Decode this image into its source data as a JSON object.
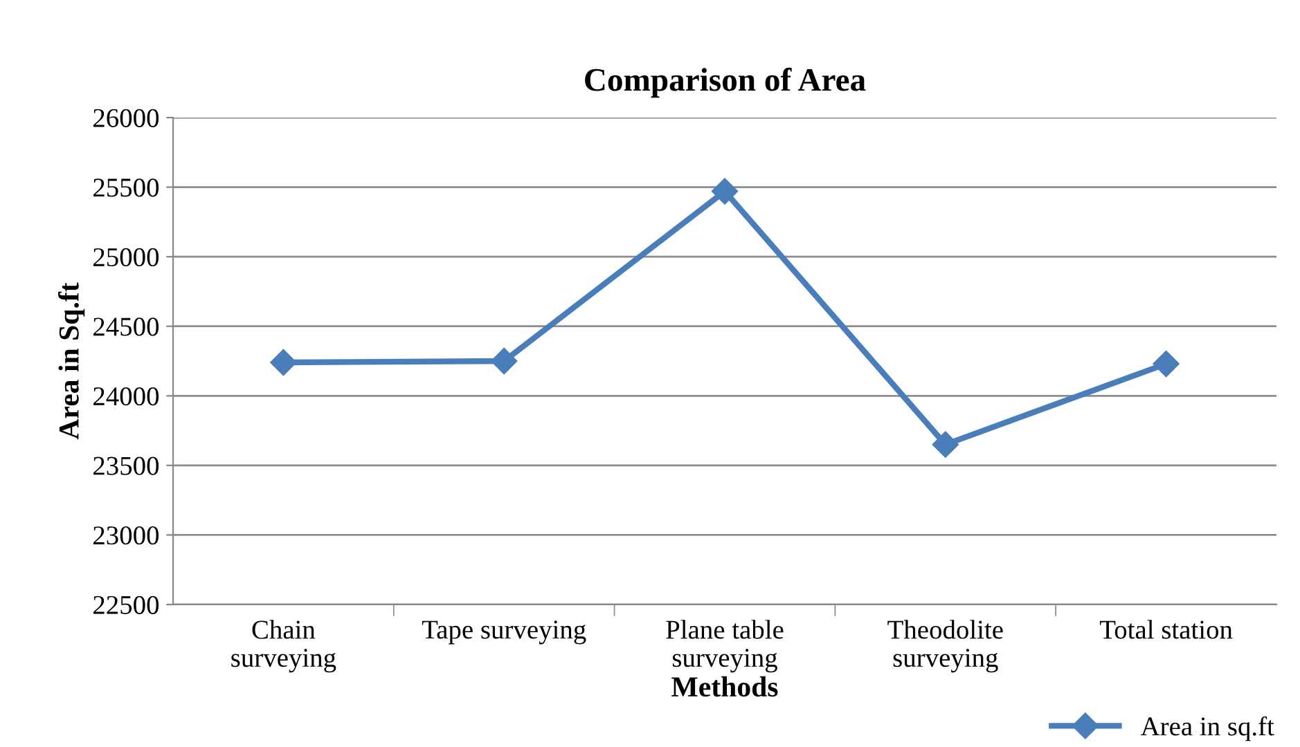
{
  "chart_data": {
    "type": "line",
    "title": "Comparison of Area",
    "xlabel": "Methods",
    "ylabel": "Area in Sq.ft",
    "categories": [
      "Chain\nsurveying",
      "Tape surveying",
      "Plane table\nsurveying",
      "Theodolite\nsurveying",
      "Total station"
    ],
    "series": [
      {
        "name": "Area in sq.ft",
        "color": "#4a7ebb",
        "values": [
          24240,
          24250,
          25470,
          23650,
          24230
        ]
      }
    ],
    "ylim": [
      22500,
      26000
    ],
    "yticks": [
      22500,
      23000,
      23500,
      24000,
      24500,
      25000,
      25500,
      26000
    ],
    "grid": "y",
    "legend": "bottom right",
    "marker": "diamond",
    "line_style": "solid"
  }
}
